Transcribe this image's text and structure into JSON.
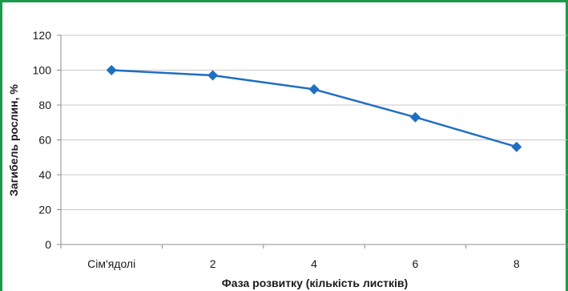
{
  "chart_data": {
    "type": "line",
    "title": "",
    "xlabel": "Фаза розвитку (кількість листків)",
    "ylabel": "Загибель рослин, %",
    "categories": [
      "Сім'ядолі",
      "2",
      "4",
      "6",
      "8"
    ],
    "series": [
      {
        "values": [
          100,
          97,
          89,
          73,
          56
        ]
      }
    ],
    "ylim": [
      0,
      120
    ],
    "yticks": [
      0,
      20,
      40,
      60,
      80,
      100,
      120
    ],
    "grid": true,
    "legend": "none",
    "line_color": "#1f6fc0",
    "grid_color": "#c8c8c8",
    "axis_color": "#8c8c8c",
    "frame_color": "#1a9a4a"
  }
}
